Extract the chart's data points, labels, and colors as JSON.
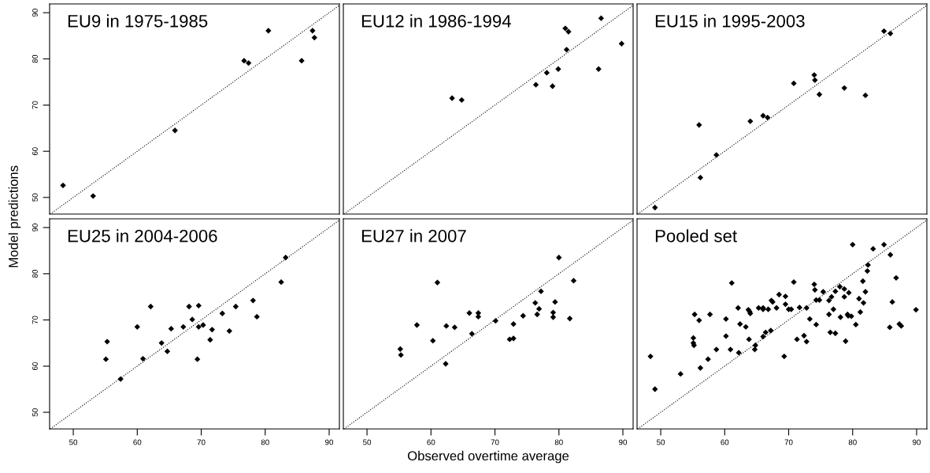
{
  "chart_data": [
    {
      "type": "scatter",
      "title": "EU9 in 1975-1985",
      "xlim": [
        46.3,
        91.6
      ],
      "ylim": [
        46.4,
        91.9
      ],
      "xticks": [
        50,
        60,
        70,
        80,
        90
      ],
      "yticks": [
        50,
        60,
        70,
        80,
        90
      ],
      "tick_labels": "y",
      "grid": false,
      "marker": "diamond",
      "series": [
        {
          "color": "#000000",
          "x": [
            48.4,
            53.1,
            65.9,
            76.7,
            77.4,
            80.5,
            85.7,
            87.4,
            87.7
          ],
          "values": [
            52.6,
            50.3,
            64.5,
            79.6,
            79.1,
            86.1,
            79.6,
            86.1,
            84.6
          ]
        },
        {
          "type": "line",
          "color": "#000000",
          "line_style": "dotted",
          "marker": "none",
          "x": [
            46.4,
            91.6
          ],
          "values": [
            46.4,
            91.6
          ]
        }
      ]
    },
    {
      "type": "scatter",
      "title": "EU12 in 1986-1994",
      "xlim": [
        46.3,
        91.6
      ],
      "ylim": [
        46.4,
        91.9
      ],
      "xticks": [
        50,
        60,
        70,
        80,
        90
      ],
      "yticks": [
        50,
        60,
        70,
        80,
        90
      ],
      "tick_labels": false,
      "grid": false,
      "marker": "diamond",
      "series": [
        {
          "color": "#000000",
          "x": [
            63.3,
            64.8,
            76.4,
            78.1,
            79.0,
            79.9,
            81.0,
            81.5,
            81.2,
            86.2,
            86.6,
            89.8
          ],
          "values": [
            71.5,
            71.1,
            74.4,
            77.0,
            74.1,
            77.8,
            86.6,
            85.9,
            82.0,
            77.8,
            88.8,
            83.3
          ]
        },
        {
          "type": "line",
          "color": "#000000",
          "line_style": "dotted",
          "marker": "none",
          "x": [
            46.4,
            91.6
          ],
          "values": [
            46.4,
            91.6
          ]
        }
      ]
    },
    {
      "type": "scatter",
      "title": "EU15 in 1995-2003",
      "xlim": [
        46.3,
        91.6
      ],
      "ylim": [
        46.4,
        91.9
      ],
      "xticks": [
        50,
        60,
        70,
        80,
        90
      ],
      "yticks": [
        50,
        60,
        70,
        80,
        90
      ],
      "tick_labels": false,
      "grid": false,
      "marker": "diamond",
      "series": [
        {
          "color": "#000000",
          "x": [
            49.1,
            56.0,
            56.2,
            58.7,
            64.0,
            66.0,
            66.7,
            70.8,
            74.0,
            74.1,
            74.8,
            78.7,
            82.0,
            84.9,
            85.9
          ],
          "values": [
            47.8,
            65.7,
            54.3,
            59.2,
            66.5,
            67.7,
            67.3,
            74.7,
            76.5,
            75.4,
            72.3,
            73.7,
            72.1,
            86.0,
            85.5
          ]
        },
        {
          "type": "line",
          "color": "#000000",
          "line_style": "dotted",
          "marker": "none",
          "x": [
            46.4,
            91.6
          ],
          "values": [
            46.4,
            91.6
          ]
        }
      ]
    },
    {
      "type": "scatter",
      "title": "EU25 in 2004-2006",
      "ylabel": "Model predictions",
      "xlim": [
        46.3,
        91.6
      ],
      "ylim": [
        46.4,
        91.9
      ],
      "xticks": [
        50,
        60,
        70,
        80,
        90
      ],
      "yticks": [
        50,
        60,
        70,
        80,
        90
      ],
      "grid": false,
      "marker": "diamond",
      "series": [
        {
          "color": "#000000",
          "x": [
            55.1,
            55.3,
            57.4,
            60.0,
            60.9,
            62.1,
            63.8,
            64.7,
            65.3,
            67.2,
            68.1,
            68.6,
            69.4,
            69.6,
            69.6,
            70.3,
            71.4,
            71.7,
            73.3,
            74.4,
            75.4,
            78.1,
            78.7,
            82.5,
            83.2
          ],
          "values": [
            61.5,
            65.3,
            57.2,
            68.5,
            61.6,
            72.9,
            65.0,
            63.2,
            68.1,
            68.5,
            72.9,
            70.1,
            61.5,
            73.1,
            68.5,
            68.9,
            65.7,
            67.9,
            71.4,
            67.6,
            72.9,
            74.2,
            70.7,
            78.2,
            83.5
          ]
        },
        {
          "type": "line",
          "color": "#000000",
          "line_style": "dotted",
          "marker": "none",
          "x": [
            46.4,
            91.6
          ],
          "values": [
            46.4,
            91.6
          ]
        }
      ]
    },
    {
      "type": "scatter",
      "title": "EU27 in 2007",
      "xlabel": "Observed overtime average",
      "xlim": [
        46.3,
        91.6
      ],
      "ylim": [
        46.4,
        91.9
      ],
      "xticks": [
        50,
        60,
        70,
        80,
        90
      ],
      "yticks": [
        50,
        60,
        70,
        80,
        90
      ],
      "tick_labels": "x",
      "grid": false,
      "marker": "diamond",
      "series": [
        {
          "color": "#000000",
          "x": [
            55.2,
            55.3,
            57.8,
            60.3,
            61.0,
            62.3,
            62.4,
            63.7,
            66.0,
            66.4,
            67.4,
            67.4,
            70.1,
            72.3,
            72.9,
            72.9,
            74.4,
            76.3,
            76.6,
            76.9,
            77.2,
            79.1,
            79.1,
            79.4,
            80.0,
            81.7,
            82.3
          ],
          "values": [
            63.7,
            62.4,
            68.9,
            65.5,
            78.1,
            60.5,
            68.7,
            68.4,
            71.5,
            67.0,
            71.5,
            70.7,
            69.8,
            65.8,
            66.0,
            69.1,
            70.9,
            73.7,
            71.2,
            72.4,
            76.2,
            71.6,
            70.6,
            73.9,
            83.5,
            70.3,
            78.5
          ]
        },
        {
          "type": "line",
          "color": "#000000",
          "line_style": "dotted",
          "marker": "none",
          "x": [
            46.4,
            91.6
          ],
          "values": [
            46.4,
            91.6
          ]
        }
      ]
    },
    {
      "type": "scatter",
      "title": "Pooled set",
      "xlim": [
        46.3,
        91.6
      ],
      "ylim": [
        46.4,
        91.9
      ],
      "xticks": [
        50,
        60,
        70,
        80,
        90
      ],
      "yticks": [
        50,
        60,
        70,
        80,
        90
      ],
      "tick_labels": "x",
      "grid": false,
      "marker": "diamond",
      "series": [
        {
          "color": "#000000",
          "x": [
            48.4,
            49.1,
            53.1,
            55.3,
            56.0,
            55.1,
            55.1,
            55.2,
            56.2,
            57.4,
            57.7,
            58.7,
            60.2,
            60.2,
            60.9,
            61.1,
            62.1,
            62.2,
            62.4,
            63.3,
            63.7,
            63.9,
            64.0,
            63.8,
            64.8,
            64.7,
            65.3,
            66.0,
            66.0,
            66.0,
            66.4,
            66.8,
            67.2,
            67.3,
            67.5,
            68.1,
            68.5,
            69.3,
            69.5,
            69.5,
            70.0,
            70.4,
            70.8,
            71.3,
            71.7,
            72.4,
            72.8,
            72.8,
            73.3,
            74.0,
            74.1,
            74.3,
            74.3,
            74.8,
            75.4,
            76.3,
            76.3,
            76.5,
            76.7,
            77.0,
            77.3,
            77.3,
            78.0,
            78.1,
            78.7,
            78.7,
            78.9,
            79.2,
            79.3,
            79.4,
            79.8,
            80.0,
            80.5,
            81.0,
            81.2,
            81.6,
            81.7,
            82.0,
            82.3,
            82.4,
            83.2,
            84.9,
            85.8,
            85.9,
            86.2,
            86.8,
            87.3,
            87.6,
            89.9
          ],
          "values": [
            62.1,
            55.0,
            58.3,
            71.2,
            69.9,
            66.1,
            65.0,
            64.5,
            59.6,
            61.5,
            71.2,
            63.6,
            70.2,
            66.5,
            63.6,
            78.0,
            72.6,
            62.9,
            69.1,
            68.5,
            72.2,
            71.8,
            71.4,
            65.8,
            64.5,
            63.6,
            72.6,
            72.6,
            72.3,
            66.4,
            67.3,
            72.3,
            67.7,
            74.2,
            73.9,
            72.6,
            75.5,
            62.1,
            75.1,
            73.4,
            72.3,
            72.3,
            78.2,
            65.8,
            72.7,
            66.6,
            65.3,
            72.6,
            70.2,
            77.7,
            76.5,
            74.3,
            69.0,
            74.3,
            76.1,
            74.2,
            71.2,
            67.3,
            75.0,
            72.3,
            76.2,
            67.1,
            77.2,
            70.6,
            76.7,
            75.0,
            65.4,
            71.2,
            70.9,
            75.9,
            70.8,
            86.3,
            69.0,
            74.6,
            71.7,
            78.4,
            73.7,
            76.1,
            80.6,
            81.9,
            85.4,
            86.3,
            68.4,
            84.1,
            73.9,
            79.1,
            69.1,
            68.7,
            72.2
          ]
        },
        {
          "type": "line",
          "color": "#000000",
          "line_style": "dotted",
          "marker": "none",
          "x": [
            46.4,
            91.6
          ],
          "values": [
            46.4,
            91.6
          ]
        }
      ]
    }
  ]
}
